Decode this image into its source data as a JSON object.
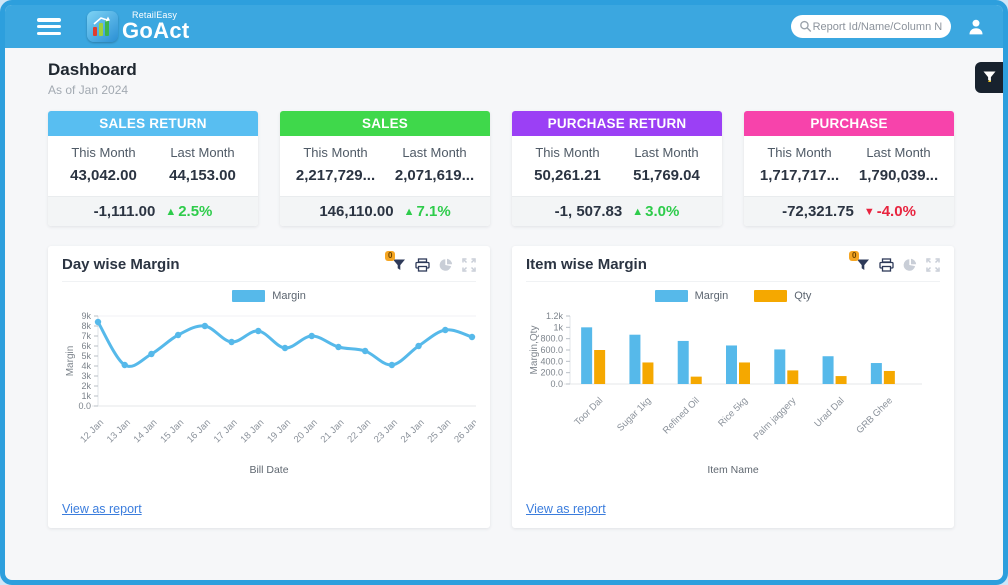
{
  "topbar": {
    "brand_small": "RetailEasy",
    "brand_large": "GoAct",
    "search_placeholder": "Report Id/Name/Column N"
  },
  "page": {
    "title": "Dashboard",
    "subtitle": "As of Jan 2024"
  },
  "colors": {
    "trend_up": "#2ecc4b",
    "trend_down": "#e8243f",
    "accent_blue": "#56b9ea",
    "accent_orange": "#f5a800"
  },
  "kpi_cards": [
    {
      "title": "SALES RETURN",
      "header_color": "#58bef1",
      "this_label": "This Month",
      "last_label": "Last Month",
      "this_value": "43,042.00",
      "last_value": "44,153.00",
      "diff": "-1,111.00",
      "pct": "2.5%",
      "trend": "up"
    },
    {
      "title": "SALES",
      "header_color": "#3fd84b",
      "this_label": "This Month",
      "last_label": "Last Month",
      "this_value": "2,217,729...",
      "last_value": "2,071,619...",
      "diff": "146,110.00",
      "pct": "7.1%",
      "trend": "up"
    },
    {
      "title": "PURCHASE RETURN",
      "header_color": "#9b40f5",
      "this_label": "This Month",
      "last_label": "Last Month",
      "this_value": "50,261.21",
      "last_value": "51,769.04",
      "diff": "-1, 507.83",
      "pct": "3.0%",
      "trend": "up"
    },
    {
      "title": "PURCHASE",
      "header_color": "#f743ab",
      "this_label": "This Month",
      "last_label": "Last Month",
      "this_value": "1,717,717...",
      "last_value": "1,790,039...",
      "diff": "-72,321.75",
      "pct": "-4.0%",
      "trend": "down"
    }
  ],
  "chart_data": [
    {
      "type": "line",
      "title": "Day wise Margin",
      "toolbar_badge": "0",
      "x": [
        "12 Jan",
        "13 Jan",
        "14 Jan",
        "15 Jan",
        "16 Jan",
        "17 Jan",
        "18 Jan",
        "19 Jan",
        "20 Jan",
        "21 Jan",
        "22 Jan",
        "23 Jan",
        "24 Jan",
        "25 Jan",
        "26 Jan"
      ],
      "series": [
        {
          "name": "Margin",
          "color": "#56b9ea",
          "values": [
            8400,
            4100,
            5200,
            7100,
            8000,
            6400,
            7500,
            5800,
            7000,
            5900,
            5500,
            4100,
            6000,
            7600,
            6900
          ]
        }
      ],
      "xlabel": "Bill Date",
      "ylabel": "Margin",
      "ylim": [
        0,
        9000
      ],
      "yticks": [
        [
          0,
          "0.0"
        ],
        [
          1000,
          "1k"
        ],
        [
          2000,
          "2k"
        ],
        [
          3000,
          "3k"
        ],
        [
          4000,
          "4k"
        ],
        [
          5000,
          "5k"
        ],
        [
          6000,
          "6k"
        ],
        [
          7000,
          "7k"
        ],
        [
          8000,
          "8k"
        ],
        [
          9000,
          "9k"
        ]
      ],
      "legend_position": "top",
      "grid": false,
      "link": "View as report"
    },
    {
      "type": "bar",
      "title": "Item wise Margin",
      "toolbar_badge": "0",
      "categories": [
        "Toor Dal",
        "Sugar 1kg",
        "Refined Oil",
        "Rice 5kg",
        "Palm jaggery",
        "Urad Dal",
        "GRB Ghee"
      ],
      "series": [
        {
          "name": "Margin",
          "color": "#56b9ea",
          "values": [
            1000,
            870,
            760,
            680,
            610,
            490,
            370
          ]
        },
        {
          "name": "Qty",
          "color": "#f5a800",
          "values": [
            600,
            380,
            130,
            380,
            240,
            140,
            230
          ]
        }
      ],
      "xlabel": "Item Name",
      "ylabel": "Margin,Qty",
      "ylim": [
        0,
        1200
      ],
      "yticks": [
        [
          0,
          "0.0"
        ],
        [
          200,
          "200.0"
        ],
        [
          400,
          "400.0"
        ],
        [
          600,
          "600.0"
        ],
        [
          800,
          "800.0"
        ],
        [
          1000,
          "1k"
        ],
        [
          1200,
          "1.2k"
        ]
      ],
      "legend_position": "top",
      "grid": false,
      "link": "View as report"
    }
  ]
}
